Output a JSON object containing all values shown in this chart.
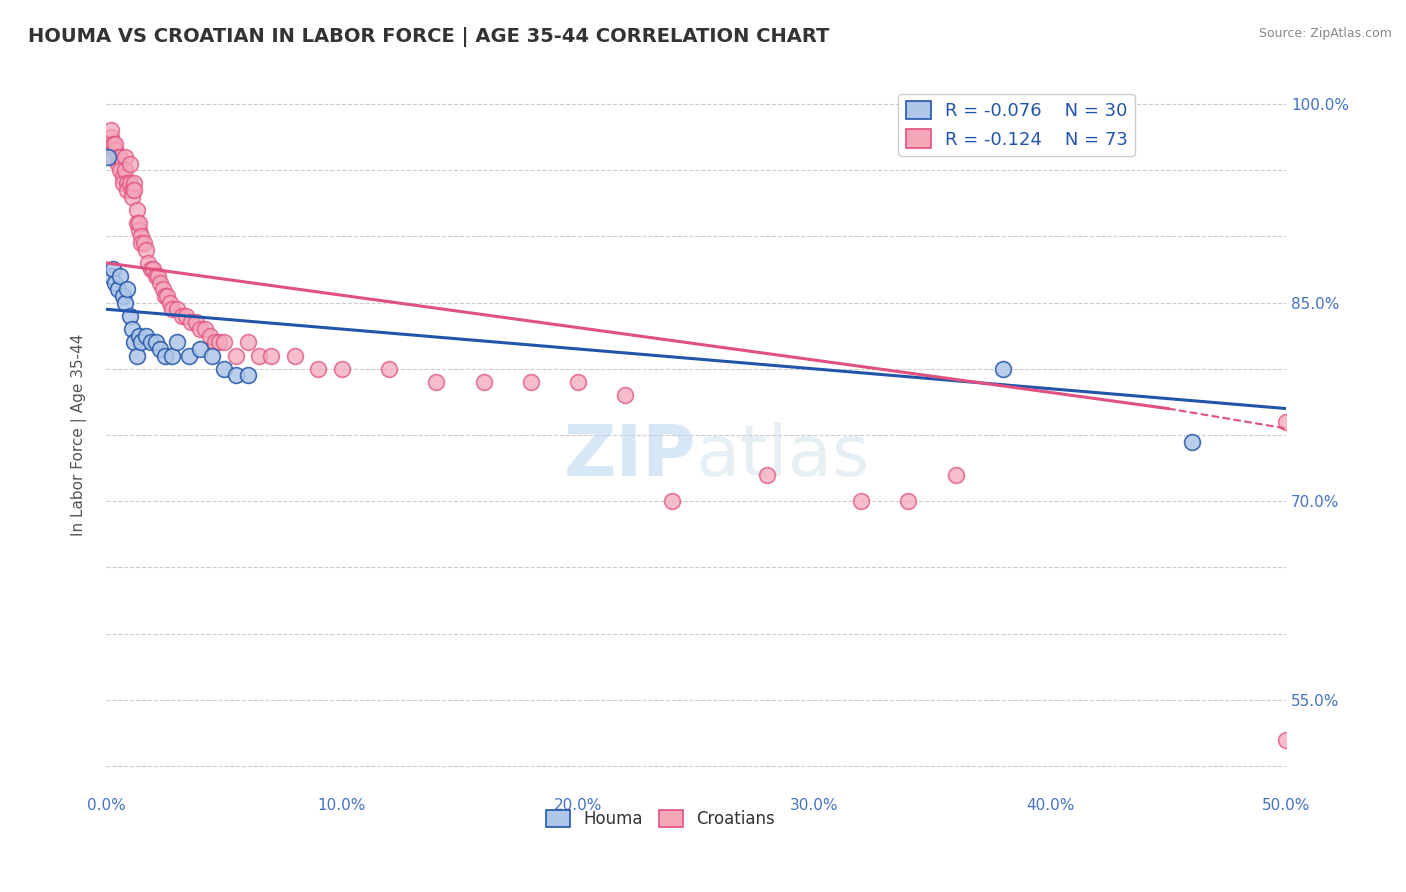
{
  "title": "HOUMA VS CROATIAN IN LABOR FORCE | AGE 35-44 CORRELATION CHART",
  "source": "Source: ZipAtlas.com",
  "ylabel_label": "In Labor Force | Age 35-44",
  "xlim": [
    0.0,
    0.5
  ],
  "ylim": [
    0.48,
    1.02
  ],
  "background_color": "#ffffff",
  "grid_color": "#cccccc",
  "houma_color": "#aec6e8",
  "croatian_color": "#f4a7b9",
  "houma_line_color": "#2255aa",
  "croatian_line_color": "#e05080",
  "houma_R": -0.076,
  "houma_N": 30,
  "croatian_R": -0.124,
  "croatian_N": 73,
  "watermark_zip": "ZIP",
  "watermark_atlas": "atlas",
  "houma_x": [
    0.001,
    0.002,
    0.003,
    0.004,
    0.005,
    0.006,
    0.007,
    0.008,
    0.009,
    0.01,
    0.011,
    0.012,
    0.013,
    0.014,
    0.015,
    0.017,
    0.019,
    0.021,
    0.023,
    0.025,
    0.028,
    0.03,
    0.035,
    0.04,
    0.045,
    0.05,
    0.055,
    0.06,
    0.38,
    0.46
  ],
  "houma_y": [
    0.96,
    0.87,
    0.875,
    0.865,
    0.86,
    0.87,
    0.855,
    0.85,
    0.86,
    0.84,
    0.83,
    0.82,
    0.81,
    0.825,
    0.82,
    0.825,
    0.82,
    0.82,
    0.815,
    0.81,
    0.81,
    0.82,
    0.81,
    0.815,
    0.81,
    0.8,
    0.795,
    0.795,
    0.8,
    0.745
  ],
  "croatian_x": [
    0.001,
    0.002,
    0.002,
    0.003,
    0.003,
    0.004,
    0.004,
    0.005,
    0.005,
    0.006,
    0.006,
    0.007,
    0.007,
    0.008,
    0.008,
    0.009,
    0.009,
    0.01,
    0.01,
    0.011,
    0.011,
    0.012,
    0.012,
    0.013,
    0.013,
    0.014,
    0.014,
    0.015,
    0.015,
    0.016,
    0.017,
    0.018,
    0.019,
    0.02,
    0.021,
    0.022,
    0.023,
    0.024,
    0.025,
    0.026,
    0.027,
    0.028,
    0.03,
    0.032,
    0.034,
    0.036,
    0.038,
    0.04,
    0.042,
    0.044,
    0.046,
    0.048,
    0.05,
    0.055,
    0.06,
    0.065,
    0.07,
    0.08,
    0.09,
    0.1,
    0.12,
    0.14,
    0.16,
    0.18,
    0.2,
    0.22,
    0.24,
    0.28,
    0.32,
    0.34,
    0.36,
    0.5,
    0.5
  ],
  "croatian_y": [
    0.97,
    0.975,
    0.98,
    0.97,
    0.96,
    0.965,
    0.97,
    0.96,
    0.955,
    0.96,
    0.95,
    0.945,
    0.94,
    0.96,
    0.95,
    0.94,
    0.935,
    0.955,
    0.94,
    0.935,
    0.93,
    0.94,
    0.935,
    0.92,
    0.91,
    0.905,
    0.91,
    0.9,
    0.895,
    0.895,
    0.89,
    0.88,
    0.875,
    0.875,
    0.87,
    0.87,
    0.865,
    0.86,
    0.855,
    0.855,
    0.85,
    0.845,
    0.845,
    0.84,
    0.84,
    0.835,
    0.835,
    0.83,
    0.83,
    0.825,
    0.82,
    0.82,
    0.82,
    0.81,
    0.82,
    0.81,
    0.81,
    0.81,
    0.8,
    0.8,
    0.8,
    0.79,
    0.79,
    0.79,
    0.79,
    0.78,
    0.7,
    0.72,
    0.7,
    0.7,
    0.72,
    0.76,
    0.52
  ],
  "houma_trend_x": [
    0.0,
    0.5
  ],
  "houma_trend_y": [
    0.845,
    0.77
  ],
  "croatian_trend_x0": 0.0,
  "croatian_trend_x1": 0.45,
  "croatian_trend_x1dash": 0.5,
  "croatian_trend_y0": 0.88,
  "croatian_trend_y1": 0.77,
  "croatian_trend_y1dash": 0.755
}
